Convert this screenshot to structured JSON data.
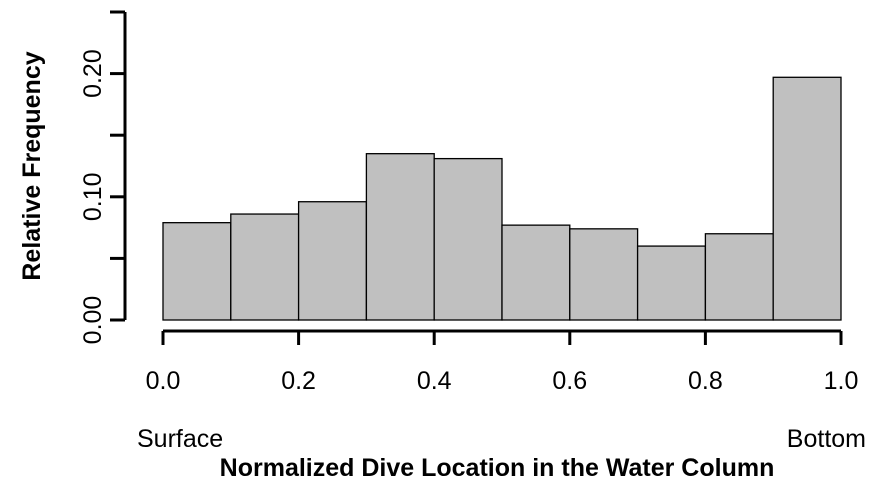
{
  "chart_data": {
    "type": "bar",
    "bin_edges": [
      0.0,
      0.1,
      0.2,
      0.3,
      0.4,
      0.5,
      0.6,
      0.7,
      0.8,
      0.9,
      1.0
    ],
    "values": [
      0.079,
      0.086,
      0.096,
      0.135,
      0.131,
      0.077,
      0.074,
      0.06,
      0.07,
      0.197
    ],
    "xlabel": "Normalized Dive Location in the Water Column",
    "ylabel": "Relative Frequency",
    "xlim": [
      0,
      1
    ],
    "ylim": [
      0,
      0.25
    ],
    "x_ticks": [
      "0.0",
      "0.2",
      "0.4",
      "0.6",
      "0.8",
      "1.0"
    ],
    "y_ticks": [
      "0.00",
      "",
      "0.10",
      "",
      "0.20",
      ""
    ],
    "x_end_labels": {
      "left": "Surface",
      "right": "Bottom"
    },
    "bar_color": "#c0c0c0",
    "grid": false
  }
}
